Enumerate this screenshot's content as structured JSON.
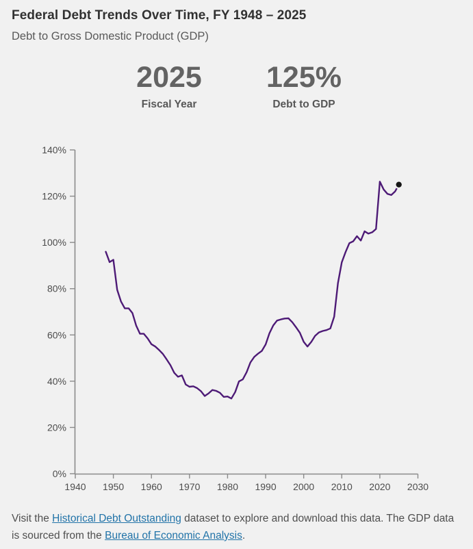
{
  "page": {
    "background": "#f1f1f1"
  },
  "header": {
    "title": "Federal Debt Trends Over Time, FY 1948 – 2025",
    "subtitle": "Debt to Gross Domestic Product (GDP)"
  },
  "stats": [
    {
      "value": "2025",
      "label": "Fiscal Year"
    },
    {
      "value": "125%",
      "label": "Debt to GDP"
    }
  ],
  "footer": {
    "text_before_link1": "Visit the ",
    "link1": "Historical Debt Outstanding",
    "text_middle": " dataset to explore and download this data. The GDP data is sourced from the ",
    "link2": "Bureau of Economic Analysis",
    "text_after": ".",
    "link_color": "#2173a8"
  },
  "chart_data": {
    "type": "line",
    "title": "Federal Debt Trends Over Time, FY 1948 – 2025",
    "subtitle": "Debt to Gross Domestic Product (GDP)",
    "xlabel": "",
    "ylabel": "",
    "xlim": [
      1940,
      2030
    ],
    "ylim": [
      0,
      140
    ],
    "x_tick_years": [
      1940,
      1950,
      1960,
      1970,
      1980,
      1990,
      2000,
      2010,
      2020,
      2030
    ],
    "y_tick_values": [
      0,
      20,
      40,
      60,
      80,
      100,
      120,
      140
    ],
    "y_tick_suffix": "%",
    "grid": false,
    "legend": "none",
    "line_color": "#4D1A76",
    "axis_color": "#8a8a8a",
    "endpoint_marker": {
      "year": 2025,
      "value": 125,
      "color": "#161616"
    },
    "series": [
      {
        "name": "Debt to GDP (%)",
        "x": [
          1948,
          1949,
          1950,
          1951,
          1952,
          1953,
          1954,
          1955,
          1956,
          1957,
          1958,
          1959,
          1960,
          1961,
          1962,
          1963,
          1964,
          1965,
          1966,
          1967,
          1968,
          1969,
          1970,
          1971,
          1972,
          1973,
          1974,
          1975,
          1976,
          1977,
          1978,
          1979,
          1980,
          1981,
          1982,
          1983,
          1984,
          1985,
          1986,
          1987,
          1988,
          1989,
          1990,
          1991,
          1992,
          1993,
          1994,
          1995,
          1996,
          1997,
          1998,
          1999,
          2000,
          2001,
          2002,
          2003,
          2004,
          2005,
          2006,
          2007,
          2008,
          2009,
          2010,
          2011,
          2012,
          2013,
          2014,
          2015,
          2016,
          2017,
          2018,
          2019,
          2020,
          2021,
          2022,
          2023,
          2024,
          2025
        ],
        "values": [
          96,
          91.5,
          92.5,
          79.5,
          74.5,
          71.5,
          71.5,
          69.5,
          64,
          60.5,
          60.5,
          58.5,
          56,
          55,
          53.5,
          51.8,
          49.4,
          46.9,
          43.6,
          41.9,
          42.5,
          38.6,
          37.6,
          37.8,
          37,
          35.7,
          33.6,
          34.7,
          36.2,
          35.8,
          35,
          33.2,
          33.4,
          32.5,
          35.3,
          39.9,
          40.8,
          43.9,
          48.1,
          50.5,
          51.9,
          53.1,
          55.9,
          60.7,
          64.1,
          66.2,
          66.7,
          67.1,
          67.2,
          65.5,
          63.3,
          60.9,
          57,
          55,
          57,
          59.6,
          61.1,
          61.7,
          62.1,
          62.8,
          67.9,
          82.4,
          91.4,
          95.8,
          99.7,
          100.5,
          102.7,
          100.8,
          104.8,
          103.8,
          104.4,
          105.8,
          126.3,
          122.9,
          121,
          120.5,
          122,
          125
        ]
      }
    ]
  }
}
